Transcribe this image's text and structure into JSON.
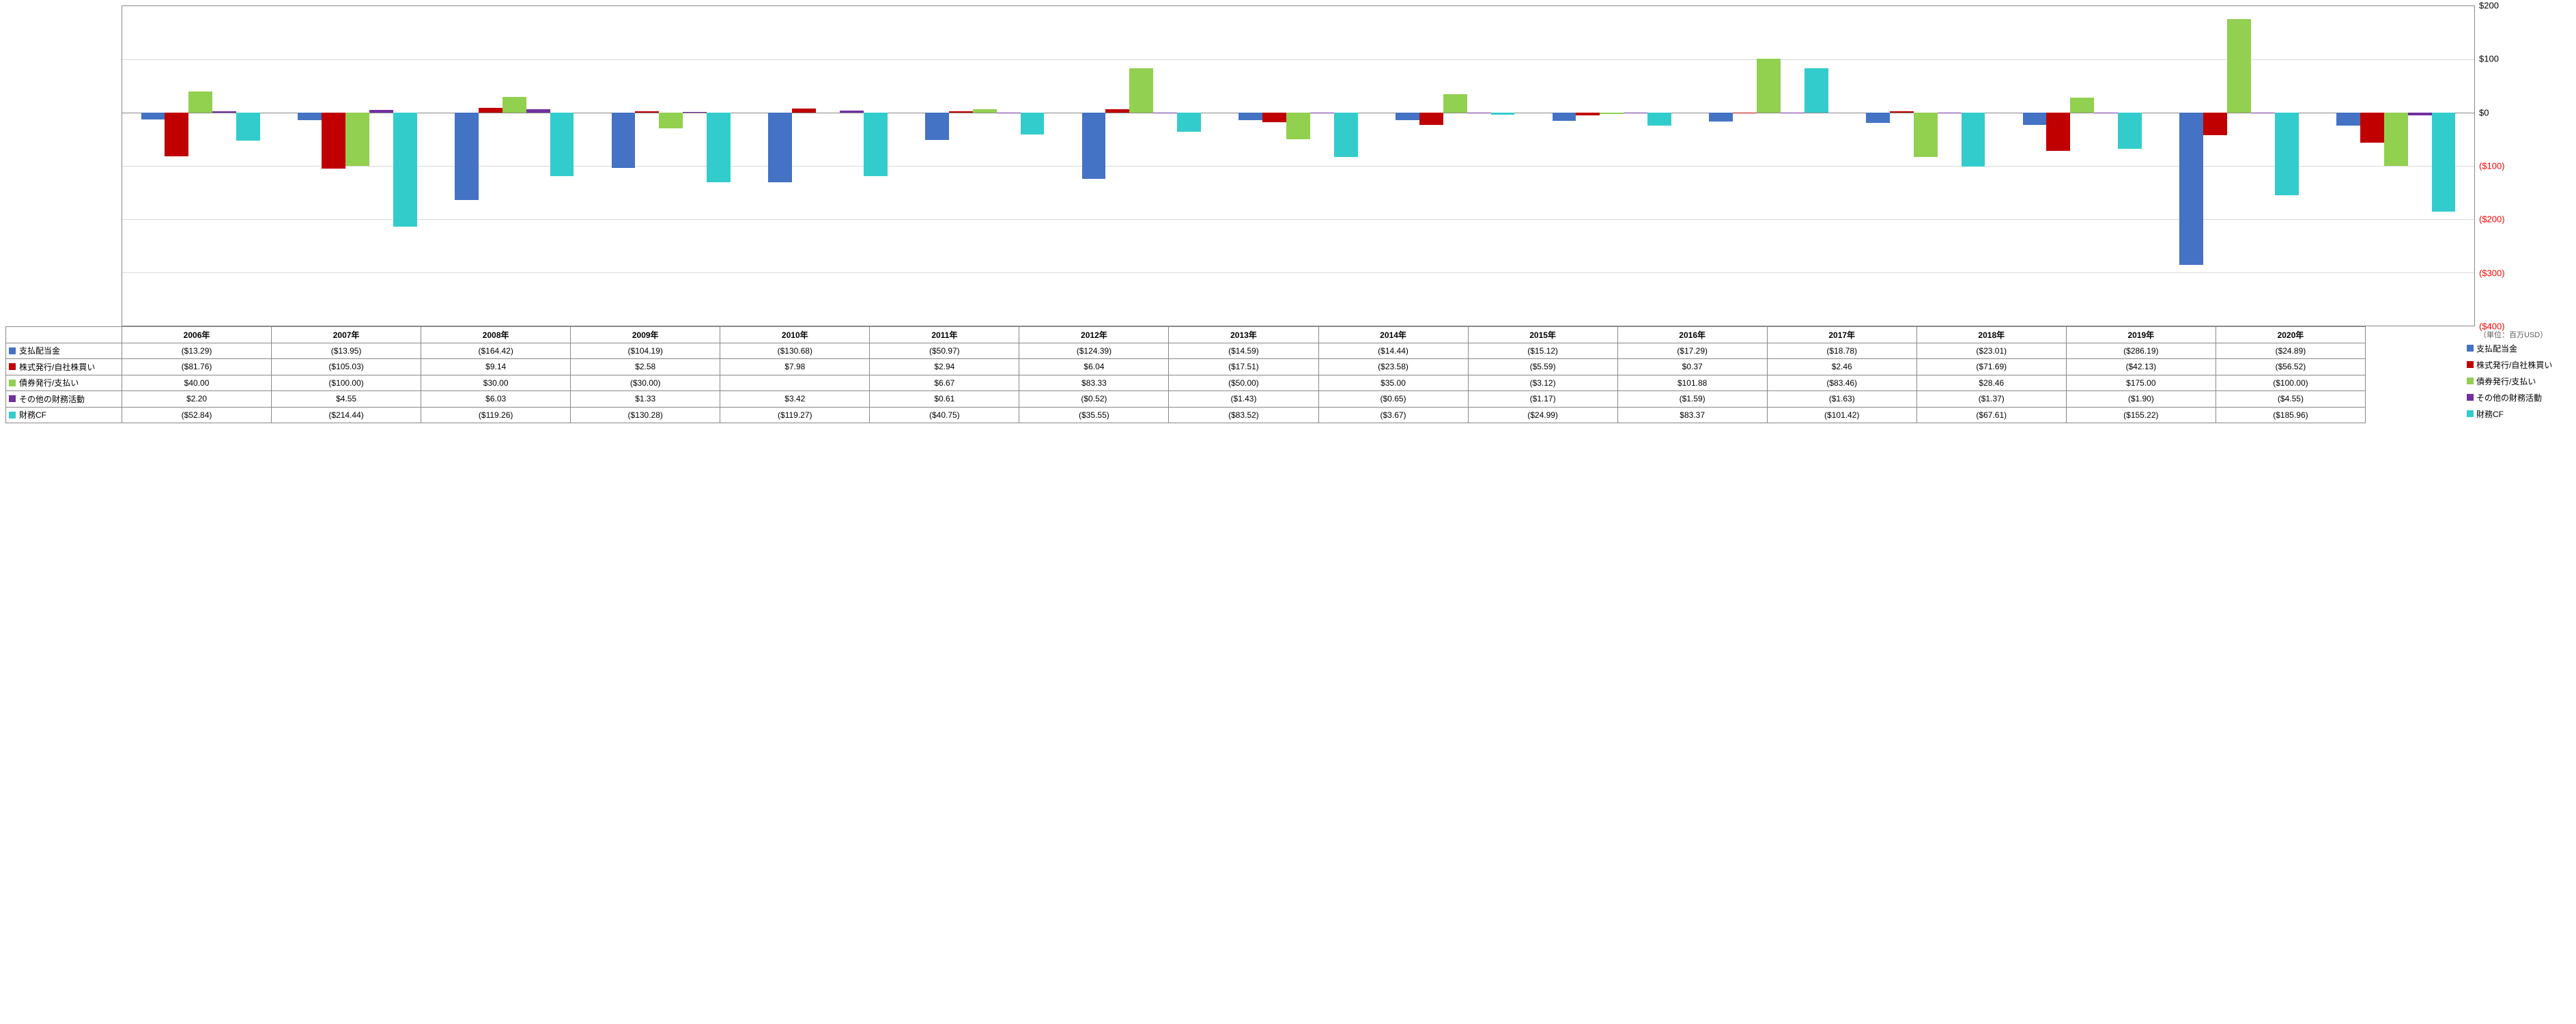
{
  "chart": {
    "type": "bar",
    "ylim": [
      -400,
      200
    ],
    "yticks": [
      -400,
      -300,
      -200,
      -100,
      0,
      100,
      200
    ],
    "ytick_labels": [
      "($400)",
      "($300)",
      "($200)",
      "($100)",
      "$0",
      "$100",
      "$200"
    ],
    "grid_color": "#d9d9d9",
    "axis_color": "#888888",
    "background": "#ffffff",
    "unit_label": "（単位：百万USD）",
    "categories": [
      "2006年",
      "2007年",
      "2008年",
      "2009年",
      "2010年",
      "2011年",
      "2012年",
      "2013年",
      "2014年",
      "2015年",
      "2016年",
      "2017年",
      "2018年",
      "2019年",
      "2020年"
    ],
    "series": [
      {
        "key": "s1",
        "label": "支払配当金",
        "color": "#4472c4",
        "values": [
          -13.29,
          -13.95,
          -164.42,
          -104.19,
          -130.68,
          -50.97,
          -124.39,
          -14.59,
          -14.44,
          -15.12,
          -17.29,
          -18.78,
          -23.01,
          -286.19,
          -24.89
        ],
        "display": [
          "($13.29)",
          "($13.95)",
          "($164.42)",
          "($104.19)",
          "($130.68)",
          "($50.97)",
          "($124.39)",
          "($14.59)",
          "($14.44)",
          "($15.12)",
          "($17.29)",
          "($18.78)",
          "($23.01)",
          "($286.19)",
          "($24.89)"
        ]
      },
      {
        "key": "s2",
        "label": "株式発行/自社株買い",
        "color": "#c00000",
        "values": [
          -81.76,
          -105.03,
          9.14,
          2.58,
          7.98,
          2.94,
          6.04,
          -17.51,
          -23.58,
          -5.59,
          0.37,
          2.46,
          -71.69,
          -42.13,
          -56.52
        ],
        "display": [
          "($81.76)",
          "($105.03)",
          "$9.14",
          "$2.58",
          "$7.98",
          "$2.94",
          "$6.04",
          "($17.51)",
          "($23.58)",
          "($5.59)",
          "$0.37",
          "$2.46",
          "($71.69)",
          "($42.13)",
          "($56.52)"
        ]
      },
      {
        "key": "s3",
        "label": "債券発行/支払い",
        "color": "#92d050",
        "values": [
          40.0,
          -100.0,
          30.0,
          -30.0,
          null,
          6.67,
          83.33,
          -50.0,
          35.0,
          -3.12,
          101.88,
          -83.46,
          28.46,
          175.0,
          -100.0
        ],
        "display": [
          "$40.00",
          "($100.00)",
          "$30.00",
          "($30.00)",
          "",
          "$6.67",
          "$83.33",
          "($50.00)",
          "$35.00",
          "($3.12)",
          "$101.88",
          "($83.46)",
          "$28.46",
          "$175.00",
          "($100.00)"
        ]
      },
      {
        "key": "s4",
        "label": "その他の財務活動",
        "color": "#7030a0",
        "values": [
          2.2,
          4.55,
          6.03,
          1.33,
          3.42,
          0.61,
          -0.52,
          -1.43,
          -0.65,
          -1.17,
          -1.59,
          -1.63,
          -1.37,
          -1.9,
          -4.55
        ],
        "display": [
          "$2.20",
          "$4.55",
          "$6.03",
          "$1.33",
          "$3.42",
          "$0.61",
          "($0.52)",
          "($1.43)",
          "($0.65)",
          "($1.17)",
          "($1.59)",
          "($1.63)",
          "($1.37)",
          "($1.90)",
          "($4.55)"
        ]
      },
      {
        "key": "s5",
        "label": "財務CF",
        "color": "#33cccc",
        "values": [
          -52.84,
          -214.44,
          -119.26,
          -130.28,
          -119.27,
          -40.75,
          -35.55,
          -83.52,
          -3.67,
          -24.99,
          83.37,
          -101.42,
          -67.61,
          -155.22,
          -185.96
        ],
        "display": [
          "($52.84)",
          "($214.44)",
          "($119.26)",
          "($130.28)",
          "($119.27)",
          "($40.75)",
          "($35.55)",
          "($83.52)",
          "($3.67)",
          "($24.99)",
          "$83.37",
          "($101.42)",
          "($67.61)",
          "($155.22)",
          "($185.96)"
        ]
      }
    ]
  }
}
